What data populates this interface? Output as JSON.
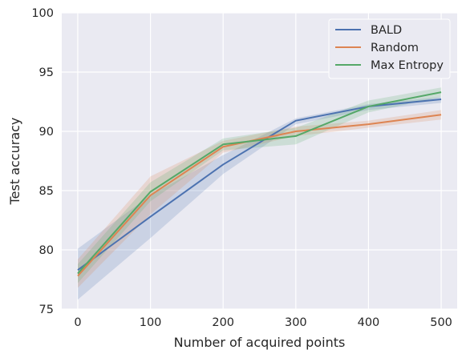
{
  "chart_data": {
    "type": "line",
    "xlabel": "Number of acquired points",
    "ylabel": "Test accuracy",
    "xlim": [
      -22,
      522
    ],
    "ylim": [
      75,
      100
    ],
    "xticks": [
      0,
      100,
      200,
      300,
      400,
      500
    ],
    "yticks": [
      75,
      80,
      85,
      90,
      95,
      100
    ],
    "grid": true,
    "legend_position": "top-right",
    "x": [
      0,
      100,
      200,
      300,
      400,
      500
    ],
    "series": [
      {
        "name": "BALD",
        "color": "#4c72b0",
        "values": [
          78.3,
          82.8,
          87.2,
          90.9,
          92.1,
          92.7
        ],
        "lower": [
          75.8,
          81.0,
          86.4,
          90.6,
          91.8,
          92.4
        ],
        "upper": [
          80.1,
          84.6,
          88.0,
          91.1,
          92.3,
          92.9
        ]
      },
      {
        "name": "Random",
        "color": "#dd8452",
        "values": [
          77.8,
          84.6,
          88.7,
          90.0,
          90.6,
          91.4
        ],
        "lower": [
          76.8,
          83.0,
          88.2,
          89.6,
          90.3,
          91.0
        ],
        "upper": [
          79.2,
          86.2,
          89.2,
          90.4,
          90.9,
          91.8
        ]
      },
      {
        "name": "Max Entropy",
        "color": "#55a868",
        "values": [
          78.0,
          84.9,
          88.9,
          89.6,
          92.1,
          93.3
        ],
        "lower": [
          77.2,
          84.1,
          88.4,
          88.9,
          91.6,
          92.9
        ],
        "upper": [
          78.8,
          85.7,
          89.4,
          90.3,
          92.6,
          93.7
        ]
      }
    ]
  }
}
